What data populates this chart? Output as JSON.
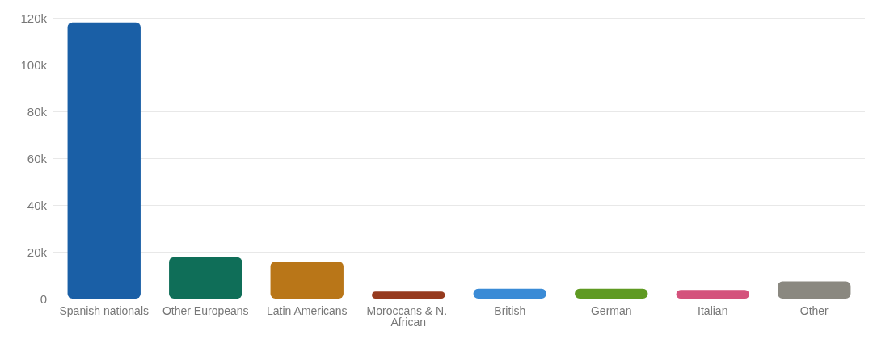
{
  "chart_data": {
    "type": "bar",
    "categories": [
      "Spanish nationals",
      "Other Europeans",
      "Latin Americans",
      "Moroccans & N. African",
      "British",
      "German",
      "Italian",
      "Other"
    ],
    "values": [
      118000,
      17700,
      15900,
      3000,
      4200,
      4200,
      3700,
      7400
    ],
    "colors": [
      "#1a5fa6",
      "#0f6e58",
      "#b97618",
      "#963a1e",
      "#3a8bd6",
      "#5f9a22",
      "#d4527c",
      "#8a8880"
    ],
    "ylim": [
      0,
      120000
    ],
    "yticks": [
      {
        "value": 0,
        "label": "0"
      },
      {
        "value": 20000,
        "label": "20k"
      },
      {
        "value": 40000,
        "label": "40k"
      },
      {
        "value": 60000,
        "label": "60k"
      },
      {
        "value": 80000,
        "label": "80k"
      },
      {
        "value": 100000,
        "label": "100k"
      },
      {
        "value": 120000,
        "label": "120k"
      }
    ],
    "grid": "y"
  }
}
